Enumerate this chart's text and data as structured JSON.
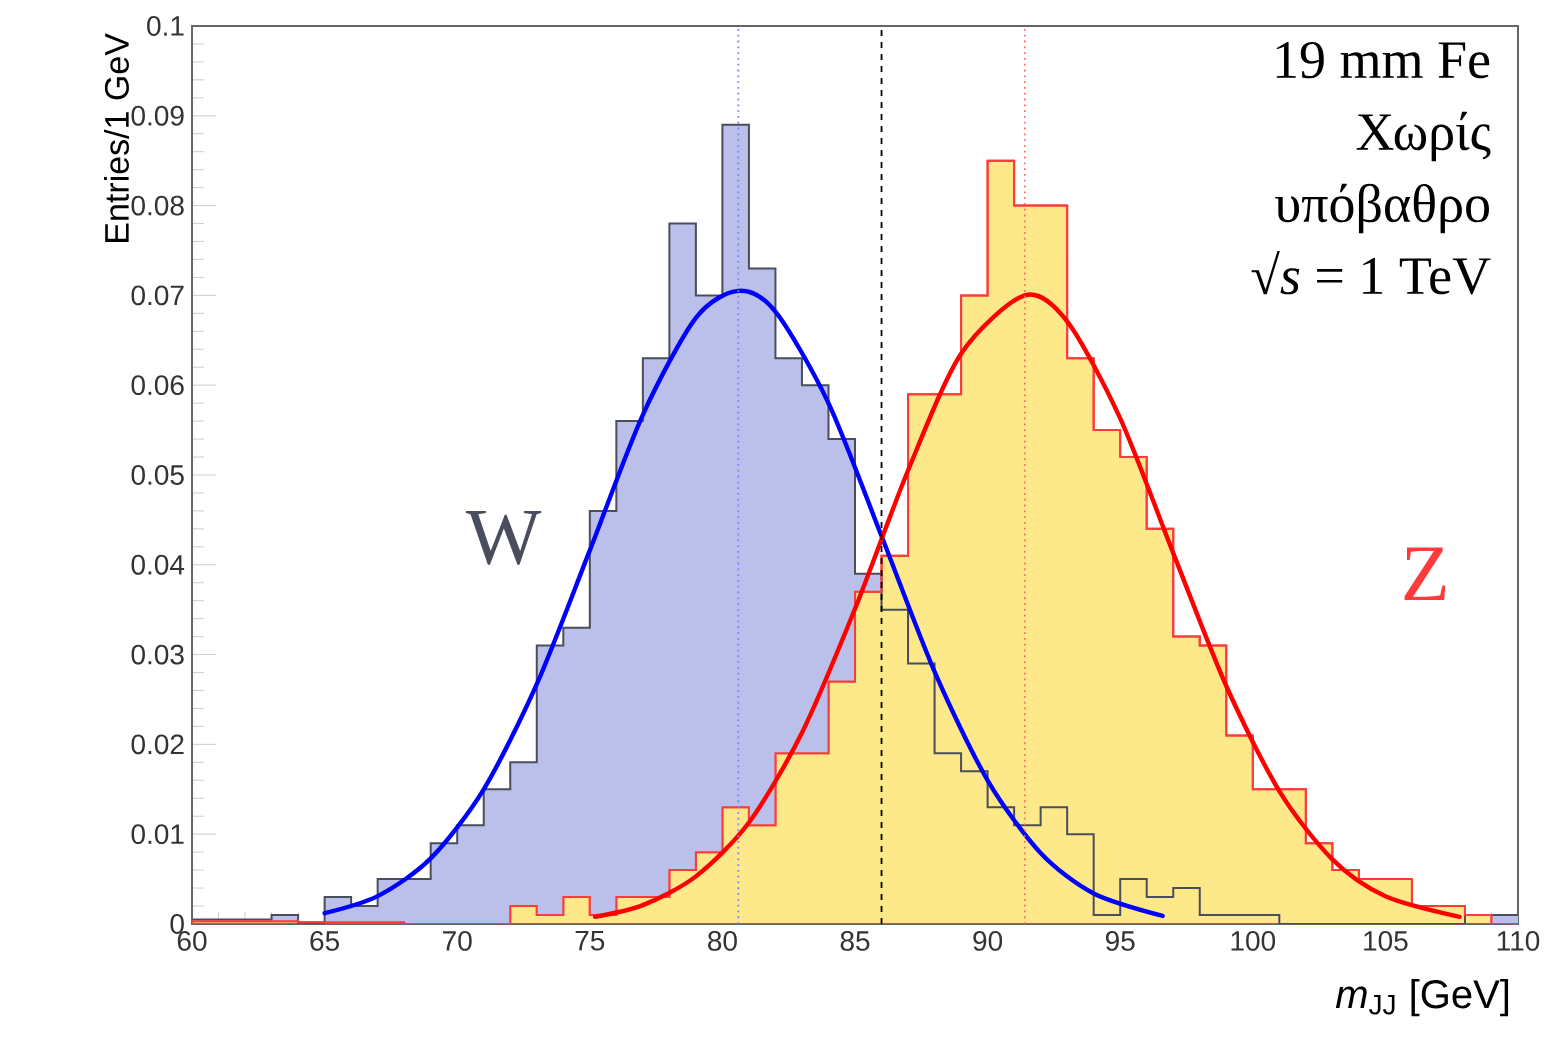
{
  "chart_data": {
    "type": "histogram",
    "xlabel": "*m*$_{JJ}$ [GeV]",
    "ylabel": "Entries/1 GeV",
    "bins": [
      60,
      61,
      62,
      63,
      64,
      65,
      66,
      67,
      68,
      69,
      70,
      71,
      72,
      73,
      74,
      75,
      76,
      77,
      78,
      79,
      80,
      81,
      82,
      83,
      84,
      85,
      86,
      87,
      88,
      89,
      90,
      91,
      92,
      93,
      94,
      95,
      96,
      97,
      98,
      99,
      100,
      101,
      102,
      103,
      104,
      105,
      106,
      107,
      108,
      109,
      110
    ],
    "series": [
      {
        "name": "W",
        "color": "#bac0e9",
        "values": [
          0.0005,
          0.0005,
          0.0005,
          0.001,
          0,
          0.003,
          0.002,
          0.005,
          0.005,
          0.009,
          0.011,
          0.015,
          0.018,
          0.031,
          0.033,
          0.046,
          0.056,
          0.063,
          0.078,
          0.07,
          0.089,
          0.073,
          0.063,
          0.06,
          0.054,
          0.039,
          0.035,
          0.029,
          0.019,
          0.017,
          0.013,
          0.011,
          0.013,
          0.01,
          0.001,
          0.005,
          0.003,
          0.004,
          0.001,
          0.001,
          0.001,
          0,
          0,
          0,
          0,
          0,
          0,
          0,
          0.001,
          0.001
        ]
      },
      {
        "name": "Z",
        "color": "#fde98a",
        "values": [
          0.0003,
          0.0003,
          0.0003,
          0.0003,
          0.0002,
          0.0002,
          0.0002,
          0.0002,
          0,
          0,
          0,
          0,
          0.002,
          0.001,
          0.003,
          0.001,
          0.003,
          0.003,
          0.006,
          0.008,
          0.013,
          0.011,
          0.019,
          0.019,
          0.027,
          0.037,
          0.041,
          0.059,
          0.059,
          0.07,
          0.085,
          0.08,
          0.08,
          0.063,
          0.055,
          0.052,
          0.044,
          0.032,
          0.031,
          0.021,
          0.015,
          0.015,
          0.009,
          0.006,
          0.005,
          0.005,
          0.002,
          0.002,
          0.001,
          0
        ]
      },
      {
        "type": "line",
        "color": "#0000ff",
        "marker": "none",
        "x": [
          65,
          67,
          69,
          71,
          73,
          75,
          77,
          79,
          80.6,
          82,
          84,
          86,
          88,
          90,
          92,
          94,
          96.6
        ],
        "values": [
          0.0012,
          0.0031,
          0.0073,
          0.015,
          0.0267,
          0.0416,
          0.0567,
          0.0675,
          0.0705,
          0.0682,
          0.058,
          0.0432,
          0.0281,
          0.016,
          0.0079,
          0.0034,
          0.0009
        ]
      },
      {
        "type": "line",
        "color": "#ff0000",
        "marker": "none",
        "x": [
          75.2,
          77,
          79,
          81,
          83,
          85,
          87,
          89,
          91.4,
          93,
          95,
          97,
          99,
          101,
          103,
          105,
          107.8
        ],
        "values": [
          0.0008,
          0.0021,
          0.0053,
          0.0113,
          0.0213,
          0.0351,
          0.0505,
          0.0635,
          0.07,
          0.0671,
          0.0563,
          0.0413,
          0.0265,
          0.0148,
          0.0072,
          0.0031,
          0.0008
        ]
      }
    ],
    "xlim": [
      60,
      110
    ],
    "ylim": [
      0,
      0.1
    ],
    "xticks": [
      60,
      65,
      70,
      75,
      80,
      85,
      90,
      95,
      100,
      105,
      110
    ],
    "yticks": [
      0,
      0.01,
      0.02,
      0.03,
      0.04,
      0.05,
      0.06,
      0.07,
      0.08,
      0.09,
      0.1
    ],
    "ref_lines": [
      {
        "axis": "x",
        "value": 80.6,
        "color": "#7f7fff",
        "line_style": "dotted"
      },
      {
        "axis": "x",
        "value": 86,
        "color": "#000000",
        "line_style": "dashed"
      },
      {
        "axis": "x",
        "value": 91.4,
        "color": "#ff6060",
        "line_style": "dotted"
      }
    ],
    "annotations": [
      "19 mm Fe",
      "Χωρίς",
      "υπόβαθρο",
      "√*s* = 1 TeV"
    ],
    "grid": false
  }
}
